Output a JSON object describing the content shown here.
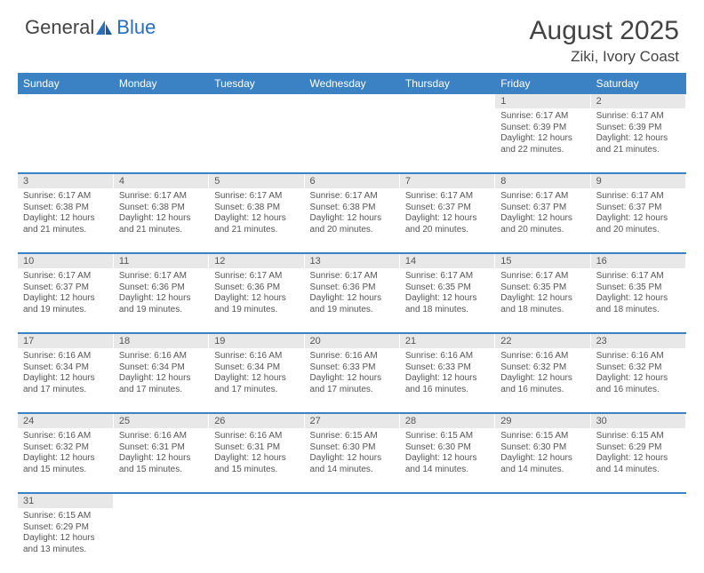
{
  "logo": {
    "part1": "General",
    "part2": "Blue"
  },
  "header": {
    "month": "August 2025",
    "location": "Ziki, Ivory Coast"
  },
  "colors": {
    "header_bg": "#3b82c4",
    "header_text": "#ffffff",
    "daybar_bg": "#e8e8e8",
    "text": "#555555",
    "rule": "#3b82c4"
  },
  "weekdays": [
    "Sunday",
    "Monday",
    "Tuesday",
    "Wednesday",
    "Thursday",
    "Friday",
    "Saturday"
  ],
  "weeks": [
    [
      null,
      null,
      null,
      null,
      null,
      {
        "n": "1",
        "sr": "Sunrise: 6:17 AM",
        "ss": "Sunset: 6:39 PM",
        "dl1": "Daylight: 12 hours",
        "dl2": "and 22 minutes."
      },
      {
        "n": "2",
        "sr": "Sunrise: 6:17 AM",
        "ss": "Sunset: 6:39 PM",
        "dl1": "Daylight: 12 hours",
        "dl2": "and 21 minutes."
      }
    ],
    [
      {
        "n": "3",
        "sr": "Sunrise: 6:17 AM",
        "ss": "Sunset: 6:38 PM",
        "dl1": "Daylight: 12 hours",
        "dl2": "and 21 minutes."
      },
      {
        "n": "4",
        "sr": "Sunrise: 6:17 AM",
        "ss": "Sunset: 6:38 PM",
        "dl1": "Daylight: 12 hours",
        "dl2": "and 21 minutes."
      },
      {
        "n": "5",
        "sr": "Sunrise: 6:17 AM",
        "ss": "Sunset: 6:38 PM",
        "dl1": "Daylight: 12 hours",
        "dl2": "and 21 minutes."
      },
      {
        "n": "6",
        "sr": "Sunrise: 6:17 AM",
        "ss": "Sunset: 6:38 PM",
        "dl1": "Daylight: 12 hours",
        "dl2": "and 20 minutes."
      },
      {
        "n": "7",
        "sr": "Sunrise: 6:17 AM",
        "ss": "Sunset: 6:37 PM",
        "dl1": "Daylight: 12 hours",
        "dl2": "and 20 minutes."
      },
      {
        "n": "8",
        "sr": "Sunrise: 6:17 AM",
        "ss": "Sunset: 6:37 PM",
        "dl1": "Daylight: 12 hours",
        "dl2": "and 20 minutes."
      },
      {
        "n": "9",
        "sr": "Sunrise: 6:17 AM",
        "ss": "Sunset: 6:37 PM",
        "dl1": "Daylight: 12 hours",
        "dl2": "and 20 minutes."
      }
    ],
    [
      {
        "n": "10",
        "sr": "Sunrise: 6:17 AM",
        "ss": "Sunset: 6:37 PM",
        "dl1": "Daylight: 12 hours",
        "dl2": "and 19 minutes."
      },
      {
        "n": "11",
        "sr": "Sunrise: 6:17 AM",
        "ss": "Sunset: 6:36 PM",
        "dl1": "Daylight: 12 hours",
        "dl2": "and 19 minutes."
      },
      {
        "n": "12",
        "sr": "Sunrise: 6:17 AM",
        "ss": "Sunset: 6:36 PM",
        "dl1": "Daylight: 12 hours",
        "dl2": "and 19 minutes."
      },
      {
        "n": "13",
        "sr": "Sunrise: 6:17 AM",
        "ss": "Sunset: 6:36 PM",
        "dl1": "Daylight: 12 hours",
        "dl2": "and 19 minutes."
      },
      {
        "n": "14",
        "sr": "Sunrise: 6:17 AM",
        "ss": "Sunset: 6:35 PM",
        "dl1": "Daylight: 12 hours",
        "dl2": "and 18 minutes."
      },
      {
        "n": "15",
        "sr": "Sunrise: 6:17 AM",
        "ss": "Sunset: 6:35 PM",
        "dl1": "Daylight: 12 hours",
        "dl2": "and 18 minutes."
      },
      {
        "n": "16",
        "sr": "Sunrise: 6:17 AM",
        "ss": "Sunset: 6:35 PM",
        "dl1": "Daylight: 12 hours",
        "dl2": "and 18 minutes."
      }
    ],
    [
      {
        "n": "17",
        "sr": "Sunrise: 6:16 AM",
        "ss": "Sunset: 6:34 PM",
        "dl1": "Daylight: 12 hours",
        "dl2": "and 17 minutes."
      },
      {
        "n": "18",
        "sr": "Sunrise: 6:16 AM",
        "ss": "Sunset: 6:34 PM",
        "dl1": "Daylight: 12 hours",
        "dl2": "and 17 minutes."
      },
      {
        "n": "19",
        "sr": "Sunrise: 6:16 AM",
        "ss": "Sunset: 6:34 PM",
        "dl1": "Daylight: 12 hours",
        "dl2": "and 17 minutes."
      },
      {
        "n": "20",
        "sr": "Sunrise: 6:16 AM",
        "ss": "Sunset: 6:33 PM",
        "dl1": "Daylight: 12 hours",
        "dl2": "and 17 minutes."
      },
      {
        "n": "21",
        "sr": "Sunrise: 6:16 AM",
        "ss": "Sunset: 6:33 PM",
        "dl1": "Daylight: 12 hours",
        "dl2": "and 16 minutes."
      },
      {
        "n": "22",
        "sr": "Sunrise: 6:16 AM",
        "ss": "Sunset: 6:32 PM",
        "dl1": "Daylight: 12 hours",
        "dl2": "and 16 minutes."
      },
      {
        "n": "23",
        "sr": "Sunrise: 6:16 AM",
        "ss": "Sunset: 6:32 PM",
        "dl1": "Daylight: 12 hours",
        "dl2": "and 16 minutes."
      }
    ],
    [
      {
        "n": "24",
        "sr": "Sunrise: 6:16 AM",
        "ss": "Sunset: 6:32 PM",
        "dl1": "Daylight: 12 hours",
        "dl2": "and 15 minutes."
      },
      {
        "n": "25",
        "sr": "Sunrise: 6:16 AM",
        "ss": "Sunset: 6:31 PM",
        "dl1": "Daylight: 12 hours",
        "dl2": "and 15 minutes."
      },
      {
        "n": "26",
        "sr": "Sunrise: 6:16 AM",
        "ss": "Sunset: 6:31 PM",
        "dl1": "Daylight: 12 hours",
        "dl2": "and 15 minutes."
      },
      {
        "n": "27",
        "sr": "Sunrise: 6:15 AM",
        "ss": "Sunset: 6:30 PM",
        "dl1": "Daylight: 12 hours",
        "dl2": "and 14 minutes."
      },
      {
        "n": "28",
        "sr": "Sunrise: 6:15 AM",
        "ss": "Sunset: 6:30 PM",
        "dl1": "Daylight: 12 hours",
        "dl2": "and 14 minutes."
      },
      {
        "n": "29",
        "sr": "Sunrise: 6:15 AM",
        "ss": "Sunset: 6:30 PM",
        "dl1": "Daylight: 12 hours",
        "dl2": "and 14 minutes."
      },
      {
        "n": "30",
        "sr": "Sunrise: 6:15 AM",
        "ss": "Sunset: 6:29 PM",
        "dl1": "Daylight: 12 hours",
        "dl2": "and 14 minutes."
      }
    ],
    [
      {
        "n": "31",
        "sr": "Sunrise: 6:15 AM",
        "ss": "Sunset: 6:29 PM",
        "dl1": "Daylight: 12 hours",
        "dl2": "and 13 minutes."
      },
      null,
      null,
      null,
      null,
      null,
      null
    ]
  ]
}
